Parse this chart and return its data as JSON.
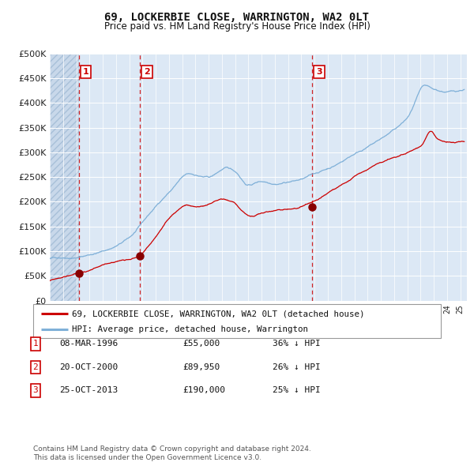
{
  "title": "69, LOCKERBIE CLOSE, WARRINGTON, WA2 0LT",
  "subtitle": "Price paid vs. HM Land Registry's House Price Index (HPI)",
  "legend_line1": "69, LOCKERBIE CLOSE, WARRINGTON, WA2 0LT (detached house)",
  "legend_line2": "HPI: Average price, detached house, Warrington",
  "table": [
    {
      "num": "1",
      "date": "08-MAR-1996",
      "price": "£55,000",
      "hpi": "36% ↓ HPI"
    },
    {
      "num": "2",
      "date": "20-OCT-2000",
      "price": "£89,950",
      "hpi": "26% ↓ HPI"
    },
    {
      "num": "3",
      "date": "25-OCT-2013",
      "price": "£190,000",
      "hpi": "25% ↓ HPI"
    }
  ],
  "footnote1": "Contains HM Land Registry data © Crown copyright and database right 2024.",
  "footnote2": "This data is licensed under the Open Government Licence v3.0.",
  "sale_dates_decimal": [
    1996.19,
    2000.81,
    2013.82
  ],
  "sale_prices": [
    55000,
    89950,
    190000
  ],
  "ylim": [
    0,
    500000
  ],
  "yticks": [
    0,
    50000,
    100000,
    150000,
    200000,
    250000,
    300000,
    350000,
    400000,
    450000,
    500000
  ],
  "xlim_start": 1994,
  "xlim_end": 2025.5,
  "bg_color": "#dce8f5",
  "grid_color": "#ffffff",
  "red_line_color": "#cc0000",
  "blue_line_color": "#7fb0d8",
  "marker_color": "#880000",
  "vline_color": "#cc0000",
  "box_edge_color": "#cc0000"
}
